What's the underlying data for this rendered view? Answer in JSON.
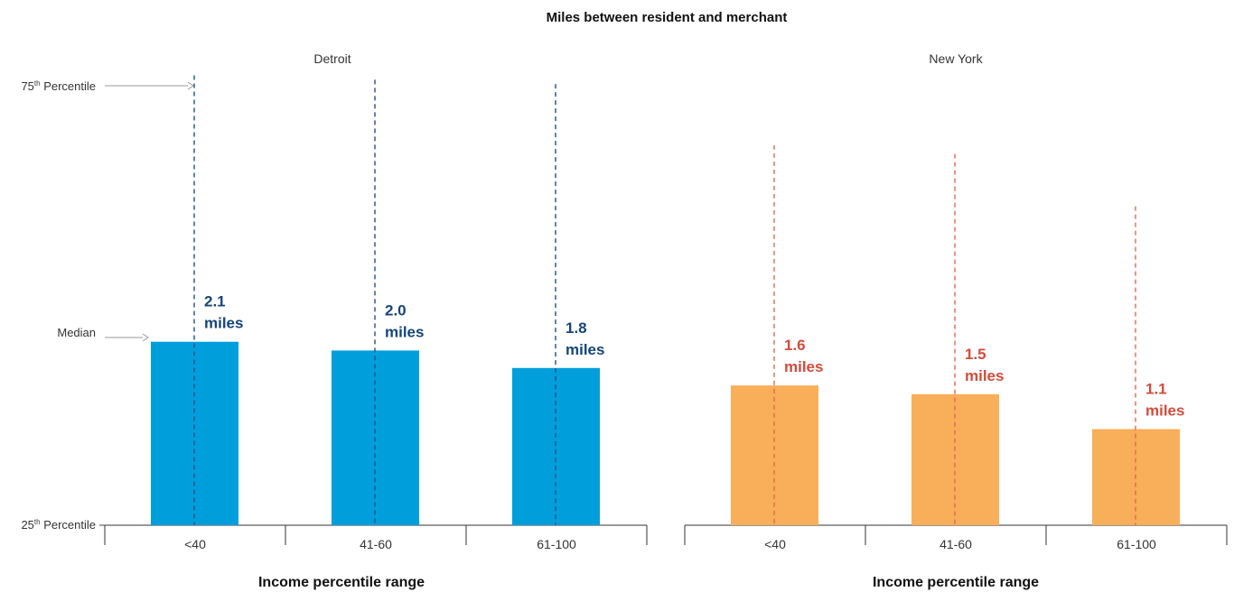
{
  "chart_data": {
    "type": "bar",
    "title": "Miles between resident and merchant",
    "side_labels": {
      "p75": {
        "base": "75",
        "sup": "th",
        "text": " Percentile"
      },
      "median": "Median",
      "p25": {
        "base": "25",
        "sup": "th",
        "text": " Percentile"
      }
    },
    "panels": [
      {
        "name": "Detroit",
        "xlabel": "Income percentile range",
        "bar_color": "#009fdb",
        "line_color": "#1f4e8c",
        "label_color": "#15457a",
        "categories": [
          "<40",
          "41-60",
          "61-100"
        ],
        "median": [
          2.1,
          2.0,
          1.8
        ],
        "p75_estimate": [
          5.15,
          5.1,
          5.05
        ],
        "value_labels": [
          [
            "2.1",
            "miles"
          ],
          [
            "2.0",
            "miles"
          ],
          [
            "1.8",
            "miles"
          ]
        ]
      },
      {
        "name": "New York",
        "xlabel": "Income percentile range",
        "bar_color": "#f9ae5a",
        "line_color": "#e06a50",
        "label_color": "#d24c3c",
        "categories": [
          "<40",
          "41-60",
          "61-100"
        ],
        "median": [
          1.6,
          1.5,
          1.1
        ],
        "p75_estimate": [
          4.35,
          4.25,
          3.65
        ],
        "value_labels": [
          [
            "1.6",
            "miles"
          ],
          [
            "1.5",
            "miles"
          ],
          [
            "1.1",
            "miles"
          ]
        ]
      }
    ],
    "y_scale_note": "axis shows only 25th percentile, median and 75th percentile markers",
    "ylim": [
      0,
      5.4
    ],
    "grid": false,
    "legend": "none"
  }
}
